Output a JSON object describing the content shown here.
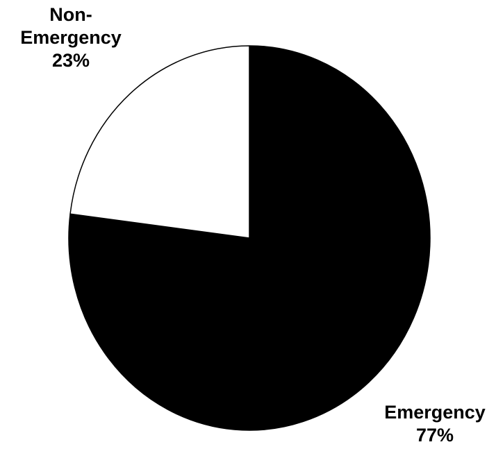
{
  "chart_data": {
    "type": "pie",
    "title": "",
    "slices": [
      {
        "name": "Emergency",
        "value": 77,
        "label_name": "Emergency",
        "label_value": "77%",
        "color": "#000000"
      },
      {
        "name": "Non-Emergency",
        "value": 23,
        "label_name_lines": [
          "Non-",
          "Emergency"
        ],
        "label_value": "23%",
        "color": "#ffffff"
      }
    ],
    "start_angle_deg": 0,
    "direction": "clockwise",
    "outline_color": "#000000",
    "legend": "none"
  }
}
